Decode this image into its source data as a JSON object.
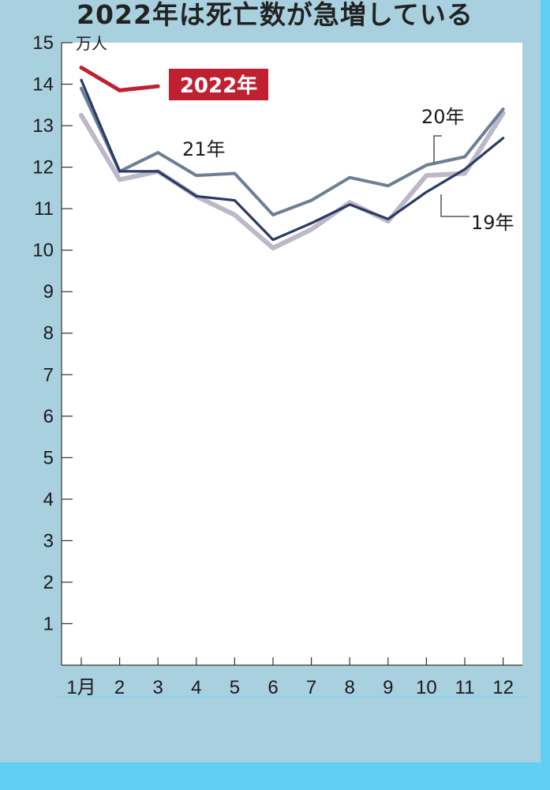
{
  "title": "2022年は死亡数が急増している",
  "chart_data": {
    "type": "line",
    "categories": [
      "1月",
      "2",
      "3",
      "4",
      "5",
      "6",
      "7",
      "8",
      "9",
      "10",
      "11",
      "12"
    ],
    "y_unit": "万人",
    "ylim": [
      0,
      15
    ],
    "y_ticks": [
      1,
      2,
      3,
      4,
      5,
      6,
      7,
      8,
      9,
      10,
      11,
      12,
      13,
      14,
      15
    ],
    "grid": false,
    "series": [
      {
        "name": "2022年",
        "color": "#c0202f",
        "values": [
          14.4,
          13.85,
          13.95,
          null,
          null,
          null,
          null,
          null,
          null,
          null,
          null,
          null
        ]
      },
      {
        "name": "21年",
        "color": "#6c7f96",
        "values": [
          13.9,
          11.9,
          12.35,
          11.8,
          11.85,
          10.85,
          11.2,
          11.75,
          11.55,
          12.05,
          12.25,
          13.4
        ]
      },
      {
        "name": "20年",
        "color": "#bcb8c8",
        "values": [
          13.25,
          11.7,
          11.9,
          11.3,
          10.85,
          10.05,
          10.5,
          11.15,
          10.7,
          11.8,
          11.85,
          13.3
        ]
      },
      {
        "name": "19年",
        "color": "#2a3a66",
        "values": [
          14.1,
          11.9,
          11.9,
          11.3,
          11.2,
          10.25,
          10.65,
          11.1,
          10.75,
          11.4,
          11.95,
          12.7
        ]
      }
    ]
  }
}
